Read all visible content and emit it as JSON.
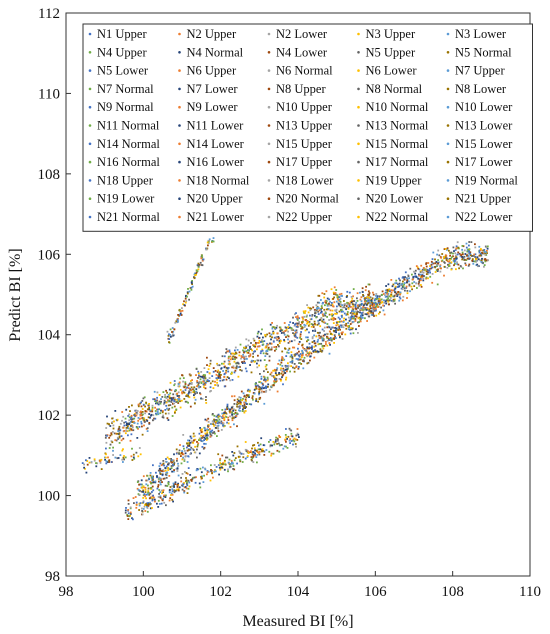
{
  "chart_data": {
    "type": "scatter",
    "xlabel": "Measured BI [%]",
    "ylabel": "Predict BI [%]",
    "xlim": [
      98,
      110
    ],
    "ylim": [
      98,
      112
    ],
    "xticks": [
      "98",
      "100",
      "102",
      "104",
      "106",
      "108",
      "110"
    ],
    "yticks": [
      "98",
      "100",
      "102",
      "104",
      "106",
      "108",
      "110",
      "112"
    ],
    "grid": false,
    "legend_position": "top",
    "colors": [
      "#4472c4",
      "#ed7d31",
      "#a5a5a5",
      "#ffc000",
      "#5b9bd5",
      "#70ad47",
      "#264478",
      "#9e480e",
      "#636363",
      "#997300"
    ],
    "series": [
      {
        "name": "N1 Upper"
      },
      {
        "name": "N2 Upper"
      },
      {
        "name": "N2 Lower"
      },
      {
        "name": "N3 Upper"
      },
      {
        "name": "N3 Lower"
      },
      {
        "name": "N4 Upper"
      },
      {
        "name": "N4 Normal"
      },
      {
        "name": "N4 Lower"
      },
      {
        "name": "N5 Upper"
      },
      {
        "name": "N5 Normal"
      },
      {
        "name": "N5 Lower"
      },
      {
        "name": "N6 Upper"
      },
      {
        "name": "N6 Normal"
      },
      {
        "name": "N6 Lower"
      },
      {
        "name": "N7 Upper"
      },
      {
        "name": "N7 Normal"
      },
      {
        "name": "N7 Lower"
      },
      {
        "name": "N8 Upper"
      },
      {
        "name": "N8 Normal"
      },
      {
        "name": "N8 Lower"
      },
      {
        "name": "N9 Normal"
      },
      {
        "name": "N9 Lower"
      },
      {
        "name": "N10 Upper"
      },
      {
        "name": "N10 Normal"
      },
      {
        "name": "N10 Lower"
      },
      {
        "name": "N11 Normal"
      },
      {
        "name": "N11 Lower"
      },
      {
        "name": "N13 Upper"
      },
      {
        "name": "N13 Normal"
      },
      {
        "name": "N13 Lower"
      },
      {
        "name": "N14 Normal"
      },
      {
        "name": "N14 Lower"
      },
      {
        "name": "N15 Upper"
      },
      {
        "name": "N15 Normal"
      },
      {
        "name": "N15 Lower"
      },
      {
        "name": "N16 Normal"
      },
      {
        "name": "N16 Lower"
      },
      {
        "name": "N17 Upper"
      },
      {
        "name": "N17 Normal"
      },
      {
        "name": "N17 Lower"
      },
      {
        "name": "N18 Upper"
      },
      {
        "name": "N18 Normal"
      },
      {
        "name": "N18 Lower"
      },
      {
        "name": "N19 Upper"
      },
      {
        "name": "N19 Normal"
      },
      {
        "name": "N19 Lower"
      },
      {
        "name": "N20 Upper"
      },
      {
        "name": "N20 Normal"
      },
      {
        "name": "N20 Lower"
      },
      {
        "name": "N21 Upper"
      },
      {
        "name": "N21 Normal"
      },
      {
        "name": "N21 Lower"
      },
      {
        "name": "N22 Upper"
      },
      {
        "name": "N22 Normal"
      },
      {
        "name": "N22 Lower"
      }
    ],
    "point_clusters": [
      {
        "x_range": [
          99.8,
          108.9
        ],
        "y_range": [
          99.8,
          106.6
        ],
        "trend": [
          [
            100,
            100.2
          ],
          [
            102,
            101.9
          ],
          [
            104,
            103.5
          ],
          [
            106,
            104.8
          ],
          [
            108,
            106.0
          ]
        ],
        "spread": 0.55
      },
      {
        "x_range": [
          99.0,
          106.0
        ],
        "y_range": [
          100.0,
          106.3
        ],
        "trend": [
          [
            99,
            101.5
          ],
          [
            101,
            102.6
          ],
          [
            103,
            103.7
          ],
          [
            105,
            104.8
          ]
        ],
        "spread": 0.7
      },
      {
        "x_range": [
          99.5,
          104.0
        ],
        "y_range": [
          99.2,
          101.8
        ],
        "trend": [
          [
            99.6,
            99.6
          ],
          [
            101,
            100.3
          ],
          [
            102.5,
            101.0
          ],
          [
            104,
            101.5
          ]
        ],
        "spread": 0.45
      },
      {
        "x_range": [
          100.6,
          101.8
        ],
        "y_range": [
          103.8,
          106.5
        ],
        "trend": [
          [
            100.7,
            104.0
          ],
          [
            101.2,
            105.2
          ],
          [
            101.7,
            106.4
          ]
        ],
        "spread": 0.25
      },
      {
        "x_range": [
          98.4,
          100.0
        ],
        "y_range": [
          100.3,
          101.5
        ],
        "trend": [
          [
            98.5,
            100.8
          ],
          [
            99.4,
            101.0
          ]
        ],
        "spread": 0.3
      }
    ]
  }
}
